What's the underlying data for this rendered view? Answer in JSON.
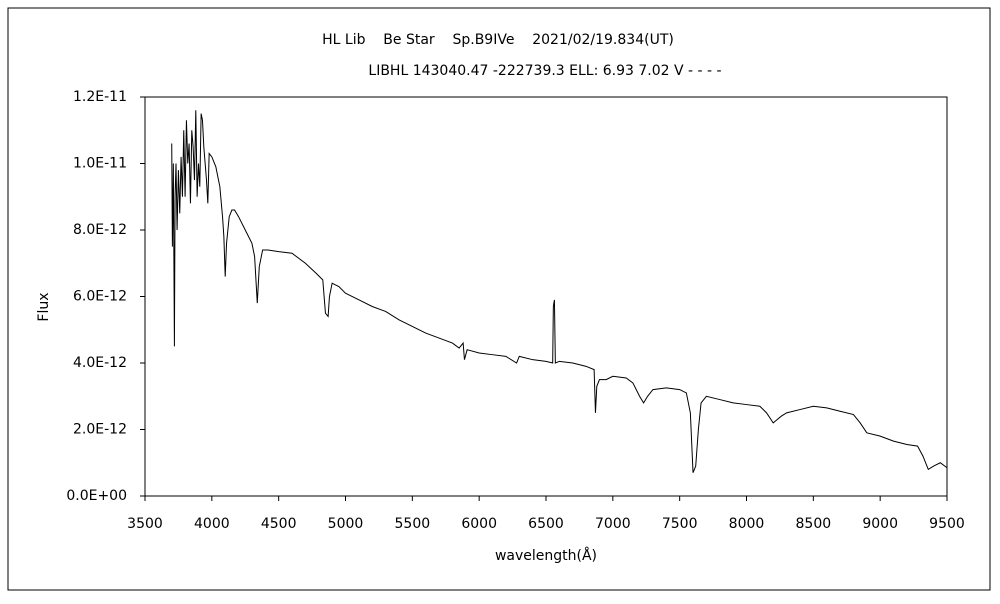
{
  "chart_data": {
    "type": "line",
    "title": "HL Lib    Be Star    Sp.B9IVe    2021/02/19.834(UT)",
    "subtitle": "LIBHL 143040.47 -222739.3 ELL: 6.93 7.02 V - - - -",
    "xlabel": "wavelength(Å)",
    "ylabel": "Flux",
    "xlim": [
      3500,
      9500
    ],
    "xticks": [
      3500,
      4000,
      4500,
      5000,
      5500,
      6000,
      6500,
      7000,
      7500,
      8000,
      8500,
      9000,
      9500
    ],
    "ylim": [
      0,
      1.2e-11
    ],
    "yticks": [
      {
        "value": 0,
        "label": "0.0E+00"
      },
      {
        "value": 2e-12,
        "label": "2.0E-12"
      },
      {
        "value": 4e-12,
        "label": "4.0E-12"
      },
      {
        "value": 6e-12,
        "label": "6.0E-12"
      },
      {
        "value": 8e-12,
        "label": "8.0E-12"
      },
      {
        "value": 1e-11,
        "label": "1.0E-11"
      },
      {
        "value": 1.2e-11,
        "label": "1.2E-11"
      }
    ],
    "grid": false,
    "series": [
      {
        "color": "#000000",
        "x": [
          3700,
          3705,
          3712,
          3720,
          3725,
          3732,
          3740,
          3750,
          3760,
          3770,
          3780,
          3790,
          3800,
          3810,
          3820,
          3830,
          3840,
          3850,
          3860,
          3870,
          3880,
          3890,
          3900,
          3910,
          3920,
          3930,
          3940,
          3960,
          3970,
          3980,
          4000,
          4030,
          4060,
          4080,
          4090,
          4100,
          4110,
          4130,
          4150,
          4170,
          4200,
          4250,
          4300,
          4320,
          4340,
          4355,
          4380,
          4420,
          4500,
          4600,
          4700,
          4780,
          4830,
          4850,
          4870,
          4880,
          4900,
          4950,
          5000,
          5100,
          5200,
          5300,
          5400,
          5500,
          5600,
          5700,
          5800,
          5850,
          5880,
          5890,
          5910,
          6000,
          6100,
          6200,
          6280,
          6300,
          6400,
          6500,
          6550,
          6555,
          6563,
          6570,
          6600,
          6700,
          6800,
          6860,
          6870,
          6880,
          6900,
          6950,
          7000,
          7100,
          7150,
          7200,
          7230,
          7260,
          7300,
          7400,
          7500,
          7550,
          7580,
          7600,
          7620,
          7640,
          7660,
          7700,
          7800,
          7900,
          8000,
          8100,
          8150,
          8200,
          8230,
          8260,
          8300,
          8400,
          8500,
          8600,
          8700,
          8800,
          8850,
          8900,
          9000,
          9100,
          9200,
          9280,
          9320,
          9360,
          9400,
          9450,
          9500
        ],
        "values": [
          1.06e-11,
          7.5e-12,
          1e-11,
          4.5e-12,
          9e-12,
          1e-11,
          8e-12,
          9.8e-12,
          8.5e-12,
          1.02e-11,
          9e-12,
          1.1e-11,
          9e-12,
          1.13e-11,
          1e-11,
          1.06e-11,
          8.8e-12,
          1.1e-11,
          1.05e-11,
          9.5e-12,
          1.16e-11,
          9e-12,
          1e-11,
          9.3e-12,
          1.15e-11,
          1.13e-11,
          1.05e-11,
          9.5e-12,
          8.8e-12,
          1.03e-11,
          1.02e-11,
          9.9e-12,
          9.3e-12,
          8.4e-12,
          7.8e-12,
          6.6e-12,
          7.6e-12,
          8.4e-12,
          8.6e-12,
          8.6e-12,
          8.4e-12,
          8e-12,
          7.6e-12,
          7.2e-12,
          5.8e-12,
          6.9e-12,
          7.4e-12,
          7.4e-12,
          7.35e-12,
          7.3e-12,
          7e-12,
          6.7e-12,
          6.5e-12,
          5.5e-12,
          5.4e-12,
          6e-12,
          6.4e-12,
          6.3e-12,
          6.1e-12,
          5.9e-12,
          5.7e-12,
          5.55e-12,
          5.3e-12,
          5.1e-12,
          4.9e-12,
          4.75e-12,
          4.6e-12,
          4.45e-12,
          4.6e-12,
          4.1e-12,
          4.4e-12,
          4.3e-12,
          4.25e-12,
          4.2e-12,
          4e-12,
          4.2e-12,
          4.1e-12,
          4.05e-12,
          4e-12,
          5.7e-12,
          5.9e-12,
          4e-12,
          4.05e-12,
          4e-12,
          3.9e-12,
          3.8e-12,
          2.5e-12,
          3.3e-12,
          3.5e-12,
          3.5e-12,
          3.6e-12,
          3.55e-12,
          3.4e-12,
          3e-12,
          2.8e-12,
          3e-12,
          3.2e-12,
          3.25e-12,
          3.2e-12,
          3.1e-12,
          2.5e-12,
          7e-13,
          9e-13,
          2e-12,
          2.8e-12,
          3e-12,
          2.9e-12,
          2.8e-12,
          2.75e-12,
          2.7e-12,
          2.5e-12,
          2.2e-12,
          2.3e-12,
          2.4e-12,
          2.5e-12,
          2.6e-12,
          2.7e-12,
          2.65e-12,
          2.55e-12,
          2.45e-12,
          2.2e-12,
          1.9e-12,
          1.8e-12,
          1.65e-12,
          1.55e-12,
          1.5e-12,
          1.2e-12,
          8e-13,
          9e-13,
          1e-12,
          8.5e-13
        ]
      }
    ]
  }
}
